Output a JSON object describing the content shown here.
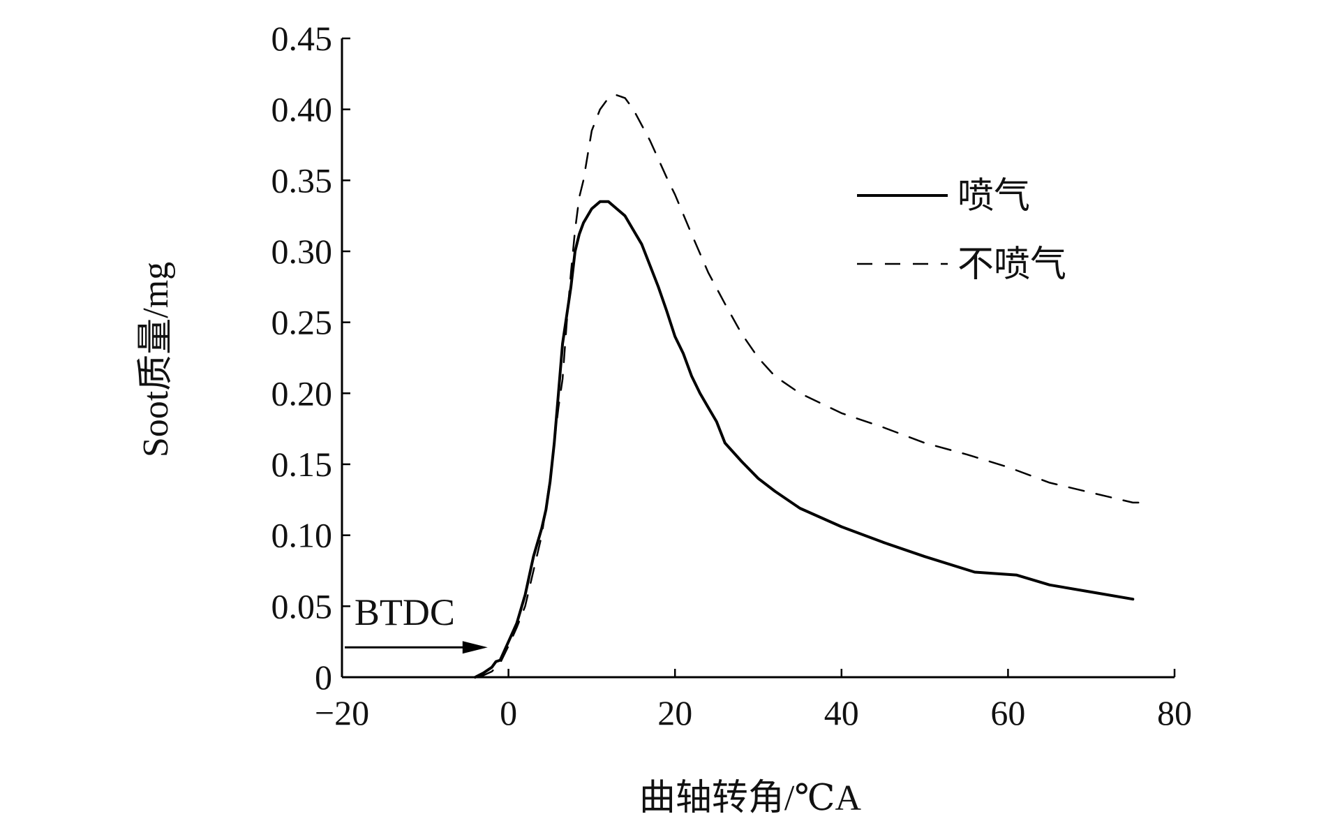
{
  "chart_data": {
    "type": "line",
    "title": "",
    "xlabel": "曲轴转角/℃A",
    "ylabel": "Soot质量/mg",
    "xlim": [
      -20,
      80
    ],
    "ylim": [
      0,
      0.45
    ],
    "x_ticks": [
      -20,
      0,
      20,
      40,
      60,
      80
    ],
    "x_tick_labels": [
      "−20",
      "0",
      "20",
      "40",
      "60",
      "80"
    ],
    "y_ticks": [
      0,
      0.05,
      0.1,
      0.15,
      0.2,
      0.25,
      0.3,
      0.35,
      0.4,
      0.45
    ],
    "y_tick_labels": [
      "0",
      "0.05",
      "0.10",
      "0.15",
      "0.20",
      "0.25",
      "0.30",
      "0.35",
      "0.40",
      "0.45"
    ],
    "grid": false,
    "legend_position": "top-right",
    "series": [
      {
        "name": "喷气",
        "style": "solid",
        "color": "#000000",
        "points": [
          [
            -4,
            0.0
          ],
          [
            -3,
            0.003
          ],
          [
            -2,
            0.007
          ],
          [
            -1.5,
            0.011
          ],
          [
            -1,
            0.012
          ],
          [
            0,
            0.025
          ],
          [
            1,
            0.038
          ],
          [
            2,
            0.058
          ],
          [
            3,
            0.085
          ],
          [
            4,
            0.105
          ],
          [
            4.5,
            0.118
          ],
          [
            5,
            0.138
          ],
          [
            5.5,
            0.165
          ],
          [
            6,
            0.2
          ],
          [
            6.5,
            0.235
          ],
          [
            7,
            0.255
          ],
          [
            7.5,
            0.275
          ],
          [
            8,
            0.3
          ],
          [
            8.5,
            0.312
          ],
          [
            9,
            0.32
          ],
          [
            10,
            0.33
          ],
          [
            11,
            0.335
          ],
          [
            12,
            0.335
          ],
          [
            13,
            0.33
          ],
          [
            14,
            0.325
          ],
          [
            15,
            0.315
          ],
          [
            16,
            0.305
          ],
          [
            17,
            0.29
          ],
          [
            18,
            0.275
          ],
          [
            19,
            0.258
          ],
          [
            20,
            0.24
          ],
          [
            21,
            0.228
          ],
          [
            22,
            0.212
          ],
          [
            23,
            0.2
          ],
          [
            24,
            0.19
          ],
          [
            25,
            0.18
          ],
          [
            26,
            0.165
          ],
          [
            28,
            0.152
          ],
          [
            30,
            0.14
          ],
          [
            32,
            0.131
          ],
          [
            35,
            0.119
          ],
          [
            40,
            0.106
          ],
          [
            45,
            0.095
          ],
          [
            50,
            0.085
          ],
          [
            56,
            0.074
          ],
          [
            61,
            0.072
          ],
          [
            65,
            0.065
          ],
          [
            70,
            0.06
          ],
          [
            75,
            0.055
          ]
        ]
      },
      {
        "name": "不喷气",
        "style": "dashed",
        "color": "#000000",
        "points": [
          [
            -3.5,
            0.0
          ],
          [
            -2,
            0.004
          ],
          [
            -1,
            0.01
          ],
          [
            0,
            0.022
          ],
          [
            1,
            0.035
          ],
          [
            2,
            0.05
          ],
          [
            3,
            0.075
          ],
          [
            4,
            0.1
          ],
          [
            5,
            0.14
          ],
          [
            6,
            0.19
          ],
          [
            6.5,
            0.21
          ],
          [
            7,
            0.25
          ],
          [
            7.5,
            0.285
          ],
          [
            8,
            0.315
          ],
          [
            8.5,
            0.338
          ],
          [
            9,
            0.35
          ],
          [
            10,
            0.385
          ],
          [
            11,
            0.4
          ],
          [
            12,
            0.408
          ],
          [
            13,
            0.41
          ],
          [
            14,
            0.408
          ],
          [
            15,
            0.4
          ],
          [
            17,
            0.378
          ],
          [
            19,
            0.352
          ],
          [
            20,
            0.34
          ],
          [
            22,
            0.312
          ],
          [
            24,
            0.285
          ],
          [
            26,
            0.263
          ],
          [
            28,
            0.242
          ],
          [
            30,
            0.225
          ],
          [
            32,
            0.212
          ],
          [
            35,
            0.2
          ],
          [
            40,
            0.186
          ],
          [
            45,
            0.176
          ],
          [
            50,
            0.165
          ],
          [
            55,
            0.157
          ],
          [
            60,
            0.148
          ],
          [
            65,
            0.137
          ],
          [
            70,
            0.13
          ],
          [
            75,
            0.123
          ],
          [
            76,
            0.123
          ]
        ]
      }
    ],
    "annotations": [
      {
        "text": "BTDC",
        "arrow_from_x": -20,
        "arrow_to_x": -2.5,
        "arrow_y": 0.021,
        "text_x": -18.5,
        "text_y": 0.037
      }
    ]
  }
}
